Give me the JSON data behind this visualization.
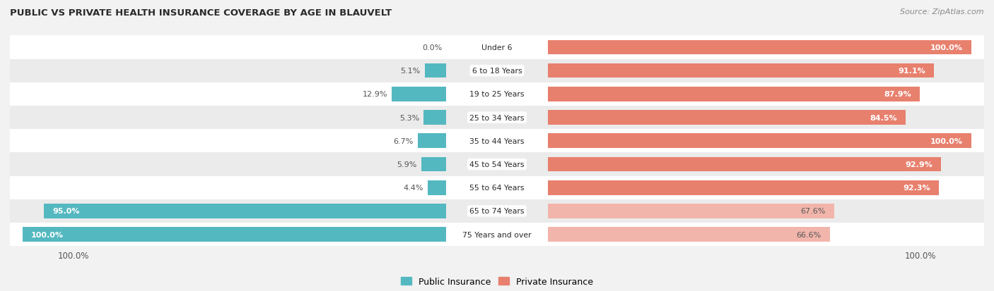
{
  "title": "PUBLIC VS PRIVATE HEALTH INSURANCE COVERAGE BY AGE IN BLAUVELT",
  "source": "Source: ZipAtlas.com",
  "categories": [
    "Under 6",
    "6 to 18 Years",
    "19 to 25 Years",
    "25 to 34 Years",
    "35 to 44 Years",
    "45 to 54 Years",
    "55 to 64 Years",
    "65 to 74 Years",
    "75 Years and over"
  ],
  "public_values": [
    0.0,
    5.1,
    12.9,
    5.3,
    6.7,
    5.9,
    4.4,
    95.0,
    100.0
  ],
  "private_values": [
    100.0,
    91.1,
    87.9,
    84.5,
    100.0,
    92.9,
    92.3,
    67.6,
    66.6
  ],
  "public_color": "#54b8c0",
  "private_color": "#e8806e",
  "public_color_light": "#54b8c0",
  "private_color_light": "#f2b5ab",
  "bg_color": "#f2f2f2",
  "row_colors": [
    "#ffffff",
    "#ebebeb"
  ],
  "title_color": "#2a2a2a",
  "label_color": "#2a2a2a",
  "value_color_white": "#ffffff",
  "value_color_dark": "#555555",
  "bar_height": 0.62,
  "legend_labels": [
    "Public Insurance",
    "Private Insurance"
  ],
  "x_tick_label": "100.0%"
}
